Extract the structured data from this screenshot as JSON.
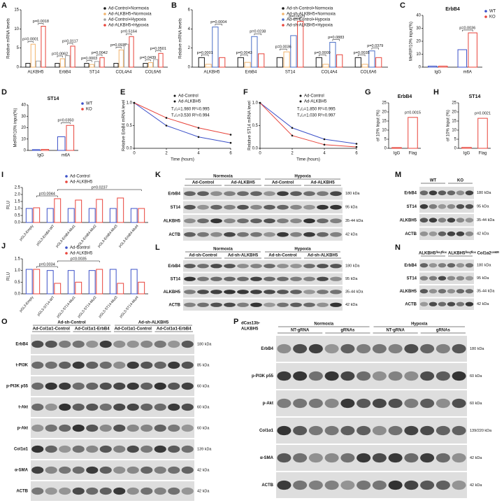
{
  "chart_data": [
    {
      "panel": "A",
      "type": "bar",
      "y_label": "Relative mRNA levels",
      "categories": [
        "ALKBH5",
        "ErbB4",
        "ST14",
        "COL4A4",
        "COL6A6"
      ],
      "series": [
        {
          "name": "Ad-Control+Normoxia",
          "color": "#1a1a1a",
          "values": [
            1,
            1,
            1,
            1,
            1
          ]
        },
        {
          "name": "Ad-ALKBH5+Normoxia",
          "color": "#f2b36b",
          "values": [
            6,
            2.2,
            0.7,
            4.5,
            1.2
          ]
        },
        {
          "name": "Ad-Control+Hypoxia",
          "color": "#a0a0a0",
          "values": [
            1.6,
            3,
            1.5,
            6,
            2
          ]
        },
        {
          "name": "Ad-ALKBH5+Hypoxia",
          "color": "#e8433a",
          "values": [
            10.7,
            5.5,
            2.5,
            8,
            3.6
          ]
        }
      ],
      "ylim": [
        0,
        15
      ],
      "yticks": [
        0,
        5,
        10,
        15
      ],
      "annotations": [
        "p=0.0001",
        "p=0.0018",
        "p=0.0062",
        "p=0.0117",
        "p=0.0003",
        "p=0.0042",
        "p=0.0937",
        "p=0.5164",
        "p=0.0439",
        "p=0.0501"
      ]
    },
    {
      "panel": "B",
      "type": "bar",
      "y_label": "Relative mRNA levels",
      "categories": [
        "ALKBH5",
        "ErbB4",
        "ST14",
        "COL4A4",
        "COL6A6"
      ],
      "series": [
        {
          "name": "Ad-sh-Control+Normoxia",
          "color": "#1a1a1a",
          "values": [
            1,
            1,
            1,
            1,
            1
          ]
        },
        {
          "name": "Ad-sh-ALKBH5+Normoxia",
          "color": "#f2b36b",
          "values": [
            0.3,
            0.5,
            1.6,
            0.3,
            0.3
          ]
        },
        {
          "name": "Ad-sh-Control+Hypoxia",
          "color": "#4a6fc7",
          "values": [
            4.2,
            3.2,
            3.3,
            2.6,
            1.7
          ]
        },
        {
          "name": "Ad-sh-ALKBH5+Hypoxia",
          "color": "#e8433a",
          "values": [
            1,
            1.4,
            4.8,
            1.3,
            1
          ]
        }
      ],
      "ylim": [
        0,
        6
      ],
      "yticks": [
        0,
        2,
        4,
        6
      ],
      "annotations": [
        "p=0.0001",
        "p=0.0004",
        "p=0.0043",
        "p=0.0238",
        "p=0.0036",
        "p=0.0023",
        "p=0.0009",
        "p=0.0883",
        "p=0.0035",
        "p=0.0379"
      ]
    },
    {
      "panel": "C",
      "type": "bar",
      "title": "ErbB4",
      "y_label": "MeRIP/10% input(%)",
      "categories": [
        "IgG",
        "m6A"
      ],
      "series": [
        {
          "name": "WT",
          "color": "#3b50c8",
          "values": [
            0.8,
            13.5
          ]
        },
        {
          "name": "KO",
          "color": "#e8433a",
          "values": [
            0.8,
            26.5
          ]
        }
      ],
      "ylim": [
        0,
        40
      ],
      "yticks": [
        0,
        10,
        20,
        30,
        40
      ],
      "annotations": [
        "p=0.0036"
      ]
    },
    {
      "panel": "D",
      "type": "bar",
      "title": "ST14",
      "y_label": "MeRIP/10% input(%)",
      "categories": [
        "IgG",
        "m6A"
      ],
      "series": [
        {
          "name": "WT",
          "color": "#3b50c8",
          "values": [
            0.7,
            12
          ]
        },
        {
          "name": "KO",
          "color": "#e8433a",
          "values": [
            0.9,
            22
          ]
        }
      ],
      "ylim": [
        0,
        40
      ],
      "yticks": [
        0,
        10,
        20,
        30,
        40
      ],
      "annotations": [
        "p=0.0350"
      ]
    },
    {
      "panel": "E",
      "type": "line",
      "y_label": "Relative ErbB4 mRNA level",
      "x_label": "Time (hours)",
      "x": [
        0,
        2,
        4,
        6
      ],
      "xlim": [
        0,
        6
      ],
      "xticks": [
        0,
        2,
        4,
        6
      ],
      "ylim": [
        0,
        1
      ],
      "yticks": [
        {
          "value": 0,
          "label": "0.0"
        },
        {
          "value": 0.5,
          "label": "0.5"
        },
        {
          "value": 1,
          "label": "1.0"
        }
      ],
      "series": [
        {
          "name": "Ad-Control",
          "color": "#3b50c8",
          "values": [
            1,
            0.5,
            0.25,
            0.12
          ]
        },
        {
          "name": "Ad-ALKBH5",
          "color": "#e8433a",
          "values": [
            1,
            0.67,
            0.45,
            0.3
          ]
        }
      ],
      "annotations": [
        "T₁/₂=1.980 R²=0.995",
        "T₁/₂=3.530 R²=0.994"
      ]
    },
    {
      "panel": "F",
      "type": "line",
      "y_label": "Relative ST14 mRNA level",
      "x_label": "Time (hours)",
      "x": [
        0,
        2,
        4,
        6
      ],
      "xlim": [
        0,
        6
      ],
      "xticks": [
        0,
        2,
        4,
        6
      ],
      "ylim": [
        0,
        1
      ],
      "yticks": [
        {
          "value": 0,
          "label": "0.0"
        },
        {
          "value": 0.5,
          "label": "0.5"
        },
        {
          "value": 1,
          "label": "1.0"
        }
      ],
      "series": [
        {
          "name": "Ad-Control",
          "color": "#3b50c8",
          "values": [
            1,
            0.45,
            0.2,
            0.1
          ]
        },
        {
          "name": "Ad-ALKBH5",
          "color": "#e8433a",
          "values": [
            1,
            0.28,
            0.08,
            0.03
          ]
        }
      ],
      "annotations": [
        "T₁/₂=1.850 R²=0.995",
        "T₁/₂=1.030 R²=0.997"
      ]
    },
    {
      "panel": "G",
      "type": "bar",
      "title": "ErbB4",
      "y_label": "of 10% Input (%)",
      "categories": [
        "IgG",
        "Flag"
      ],
      "values": [
        0.4,
        17
      ],
      "color": "#e8433a",
      "ylim": [
        0,
        25
      ],
      "yticks": [
        0,
        5,
        10,
        15,
        20,
        25
      ],
      "annotations": [
        "p=0.0015"
      ]
    },
    {
      "panel": "H",
      "type": "bar",
      "title": "ST14",
      "y_label": "of 10% Input (%)",
      "categories": [
        "IgG",
        "Flag"
      ],
      "values": [
        0.5,
        16.5
      ],
      "color": "#e8433a",
      "ylim": [
        0,
        25
      ],
      "yticks": [
        0,
        5,
        10,
        15,
        20,
        25
      ],
      "annotations": [
        "p=0.0021"
      ]
    },
    {
      "panel": "I",
      "type": "bar",
      "y_label": "RLU",
      "categories": [
        "pGL3-Empty",
        "pGL3-ErbB4-WT",
        "pGL3-ErbB4-Mut1",
        "pGL3-ErbB4-Mut2",
        "pGL3-ErbB4-Mut3",
        "pGL3-ErbB4-Mut4"
      ],
      "series": [
        {
          "name": "Ad-Control",
          "color": "#3b50c8",
          "values": [
            1,
            1,
            1,
            1,
            1,
            1
          ]
        },
        {
          "name": "Ad-ALKBH5",
          "color": "#e8433a",
          "values": [
            1.05,
            1.7,
            1.6,
            1.65,
            1.75,
            1
          ]
        }
      ],
      "ylim": [
        0,
        2.5
      ],
      "yticks": [
        {
          "value": 0,
          "label": "0.0"
        },
        {
          "value": 0.5,
          "label": "0.5"
        },
        {
          "value": 1,
          "label": "1.0"
        },
        {
          "value": 1.5,
          "label": "1.5"
        },
        {
          "value": 2,
          "label": "2.0"
        },
        {
          "value": 2.5,
          "label": "2.5"
        }
      ],
      "annotations": [
        "p=0.0044",
        "p=0.0237"
      ]
    },
    {
      "panel": "J",
      "type": "bar",
      "y_label": "RLU",
      "categories": [
        "pGL3-Empty",
        "pGL3-ST14-WT",
        "pGL3-ST14-Mut1",
        "pGL3-ST14-Mut2",
        "pGL3-ST14-Mut3",
        "pGL3-ST14-Mut4"
      ],
      "series": [
        {
          "name": "Ad-Control",
          "color": "#3b50c8",
          "values": [
            1.05,
            1,
            1,
            1,
            1.05,
            1.05
          ]
        },
        {
          "name": "Ad-ALKBH5",
          "color": "#e8433a",
          "values": [
            1.05,
            0.45,
            0.5,
            1.05,
            0.45,
            0.5
          ]
        }
      ],
      "ylim": [
        0,
        1.5
      ],
      "yticks": [
        {
          "value": 0,
          "label": "0.0"
        },
        {
          "value": 0.5,
          "label": "0.5"
        },
        {
          "value": 1,
          "label": "1.0"
        },
        {
          "value": 1.5,
          "label": "1.5"
        }
      ],
      "annotations": [
        "p=0.0034",
        "p=0.0035"
      ]
    }
  ],
  "blots": [
    {
      "panel": "K",
      "groups": [
        "Normoxia",
        "Hypoxia"
      ],
      "subgroups": [
        "Ad-Control",
        "Ad-ALKBH5",
        "Ad-Control",
        "Ad-ALKBH5"
      ],
      "rows": [
        {
          "protein": "ErbB4",
          "size": "180 kDa"
        },
        {
          "protein": "ST14",
          "size": "95 kDa"
        },
        {
          "protein": "ALKBH5",
          "size": "35-44 kDa"
        },
        {
          "protein": "ACTB",
          "size": "42 kDa"
        }
      ]
    },
    {
      "panel": "L",
      "groups": [
        "Normoxia",
        "Hypoxia"
      ],
      "subgroups": [
        "Ad-sh-Control",
        "Ad-sh-ALKBH5",
        "Ad-sh-Control",
        "Ad-sh-ALKBH5"
      ],
      "rows": [
        {
          "protein": "ErbB4",
          "size": "180 kDa"
        },
        {
          "protein": "ST14",
          "size": "95 kDa"
        },
        {
          "protein": "ALKBH5",
          "size": "35-44 kDa"
        },
        {
          "protein": "ACTB",
          "size": "42 kDa"
        }
      ]
    },
    {
      "panel": "M",
      "subgroups": [
        "WT",
        "KO"
      ],
      "rows": [
        {
          "protein": "ErbB4",
          "size": "180 kDa"
        },
        {
          "protein": "ST14",
          "size": "95 kDa"
        },
        {
          "protein": "ALKBH5",
          "size": "35-44 kDa"
        },
        {
          "protein": "ACTB",
          "size": "42 kDa"
        }
      ]
    },
    {
      "panel": "N",
      "subgroups": [
        "ALKBH5ᶠˡᵒˣ/ᶠˡᵒˣ",
        "ALKBH5ᶠˡᵒˣ/ᶠˡᵒˣ Col1α2ᶜʳᵉᴱᴿ"
      ],
      "rows": [
        {
          "protein": "ErbB4",
          "size": "180 kDa"
        },
        {
          "protein": "ST14",
          "size": "95 kDa"
        },
        {
          "protein": "ALKBH5",
          "size": "35-44 kDa"
        },
        {
          "protein": "ACTB",
          "size": "42 kDa"
        }
      ]
    },
    {
      "panel": "O",
      "groups": [
        "Ad-sh-Control",
        "Ad-sh-ALKBH5"
      ],
      "subgroups": [
        "Ad-Col1α1-Control",
        "Ad-Col1α1-ErbB4",
        "Ad-Col1α1-Control",
        "Ad-Col1α1-ErbB4"
      ],
      "rows": [
        {
          "protein": "ErbB4",
          "size": "180 kDa"
        },
        {
          "protein": "t-PI3K",
          "size": "85 kDa"
        },
        {
          "protein": "p-PI3K p55",
          "size": "60 kDa"
        },
        {
          "protein": "t-Akt",
          "size": "60 kDa"
        },
        {
          "protein": "p-Akt",
          "size": "60 kDa"
        },
        {
          "protein": "Col1α1",
          "size": "139 kDa"
        },
        {
          "protein": "α-SMA",
          "size": "42 kDa"
        },
        {
          "protein": "ACTB",
          "size": "42 kDa"
        }
      ]
    },
    {
      "panel": "P",
      "header_left": [
        "dCas13b-",
        "ALKBH5"
      ],
      "groups": [
        "Normoxia",
        "Hypoxia"
      ],
      "subgroups": [
        "NT-gRNA",
        "gRNAs",
        "NT-gRNA",
        "gRNAs"
      ],
      "rows": [
        {
          "protein": "ErbB4",
          "size": "180 kDa"
        },
        {
          "protein": "p-PI3K p55",
          "size": "60 kDa"
        },
        {
          "protein": "p-Akt",
          "size": "60 kDa"
        },
        {
          "protein": "Col1α1",
          "size": "139/220 kDa"
        },
        {
          "protein": "α-SMA",
          "size": "42 kDa"
        },
        {
          "protein": "ACTB",
          "size": "42 kDa"
        }
      ]
    }
  ]
}
